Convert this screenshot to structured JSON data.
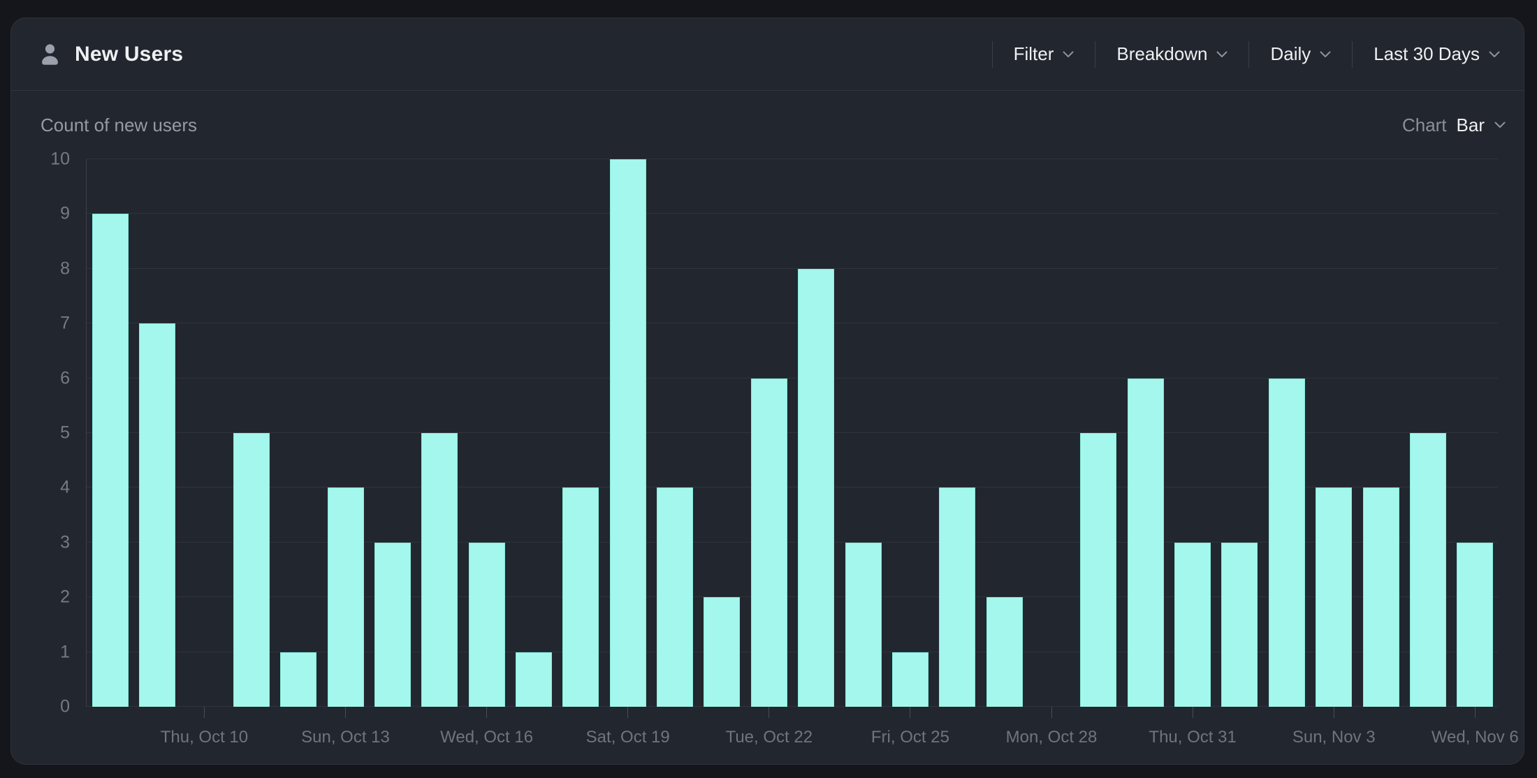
{
  "card": {
    "title": "New Users",
    "header_controls": [
      {
        "id": "filter",
        "label": "Filter"
      },
      {
        "id": "breakdown",
        "label": "Breakdown"
      },
      {
        "id": "granularity",
        "label": "Daily"
      },
      {
        "id": "date-range",
        "label": "Last 30 Days"
      }
    ],
    "subheader": {
      "metric_label": "Count of new users",
      "chart_selector": {
        "label": "Chart",
        "value": "Bar"
      }
    }
  },
  "colors": {
    "page_bg": "#15161b",
    "card_bg": "#22262e",
    "bar_fill": "#a4f7ec",
    "bar_edge": "#84e9dc",
    "gridline": "#2f333b",
    "axis_line": "#3b404a",
    "text_primary": "#eef0f3",
    "text_muted": "#959ba5",
    "axis_text": "#757b85"
  },
  "chart_data": {
    "type": "bar",
    "title": "Count of new users",
    "xlabel": "",
    "ylabel": "",
    "ylim": [
      0,
      10
    ],
    "y_ticks": [
      0,
      1,
      2,
      3,
      4,
      5,
      6,
      7,
      8,
      9,
      10
    ],
    "grid": true,
    "legend": false,
    "num_bars": 30,
    "values": [
      9,
      7,
      0,
      5,
      1,
      4,
      3,
      5,
      3,
      1,
      4,
      10,
      4,
      2,
      6,
      8,
      3,
      1,
      4,
      2,
      0,
      5,
      6,
      3,
      3,
      6,
      4,
      4,
      5,
      3
    ],
    "x_tick_indices": [
      2,
      5,
      8,
      11,
      14,
      17,
      20,
      23,
      26,
      29
    ],
    "x_tick_labels": [
      "Thu, Oct 10",
      "Sun, Oct 13",
      "Wed, Oct 16",
      "Sat, Oct 19",
      "Tue, Oct 22",
      "Fri, Oct 25",
      "Mon, Oct 28",
      "Thu, Oct 31",
      "Sun, Nov 3",
      "Wed, Nov 6"
    ],
    "bar_color": "#a4f7ec"
  }
}
